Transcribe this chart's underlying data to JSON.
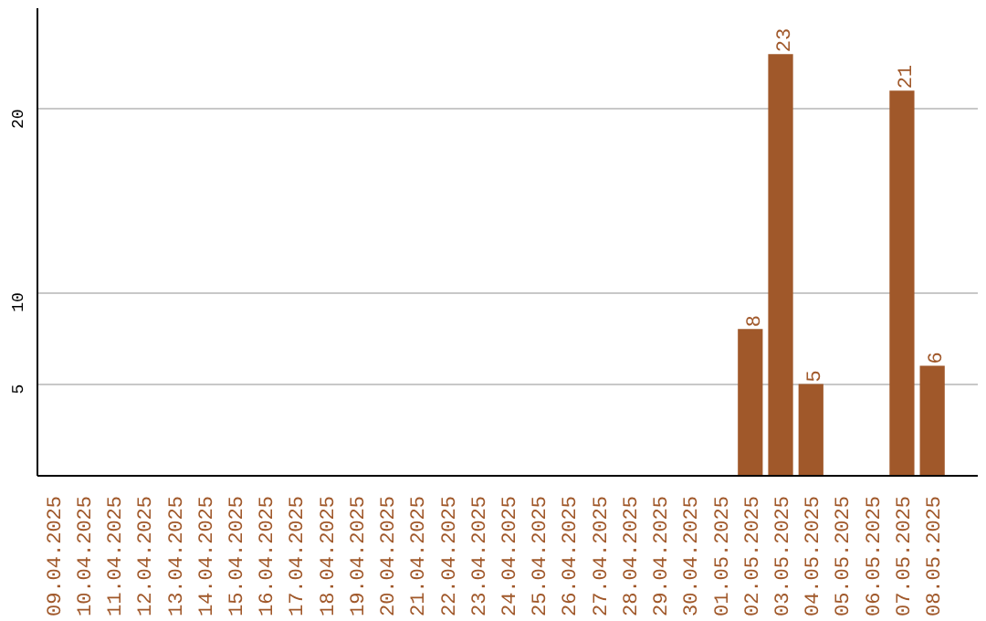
{
  "chart_data": {
    "type": "bar",
    "categories": [
      "09.04.2025",
      "10.04.2025",
      "11.04.2025",
      "12.04.2025",
      "13.04.2025",
      "14.04.2025",
      "15.04.2025",
      "16.04.2025",
      "17.04.2025",
      "18.04.2025",
      "19.04.2025",
      "20.04.2025",
      "21.04.2025",
      "22.04.2025",
      "23.04.2025",
      "24.04.2025",
      "25.04.2025",
      "26.04.2025",
      "27.04.2025",
      "28.04.2025",
      "29.04.2025",
      "30.04.2025",
      "01.05.2025",
      "02.05.2025",
      "03.05.2025",
      "04.05.2025",
      "05.05.2025",
      "06.05.2025",
      "07.05.2025",
      "08.05.2025"
    ],
    "values": [
      0,
      0,
      0,
      0,
      0,
      0,
      0,
      0,
      0,
      0,
      0,
      0,
      0,
      0,
      0,
      0,
      0,
      0,
      0,
      0,
      0,
      0,
      0,
      8,
      23,
      5,
      0,
      0,
      21,
      6
    ],
    "value_labels": [
      null,
      null,
      null,
      null,
      null,
      null,
      null,
      null,
      null,
      null,
      null,
      null,
      null,
      null,
      null,
      null,
      null,
      null,
      null,
      null,
      null,
      null,
      null,
      "8",
      "23",
      "5",
      null,
      null,
      "21",
      "6"
    ],
    "color": "#a0582a",
    "ylim": [
      0,
      25.5
    ],
    "yticks": [
      5,
      10,
      20
    ],
    "grid": "y"
  }
}
